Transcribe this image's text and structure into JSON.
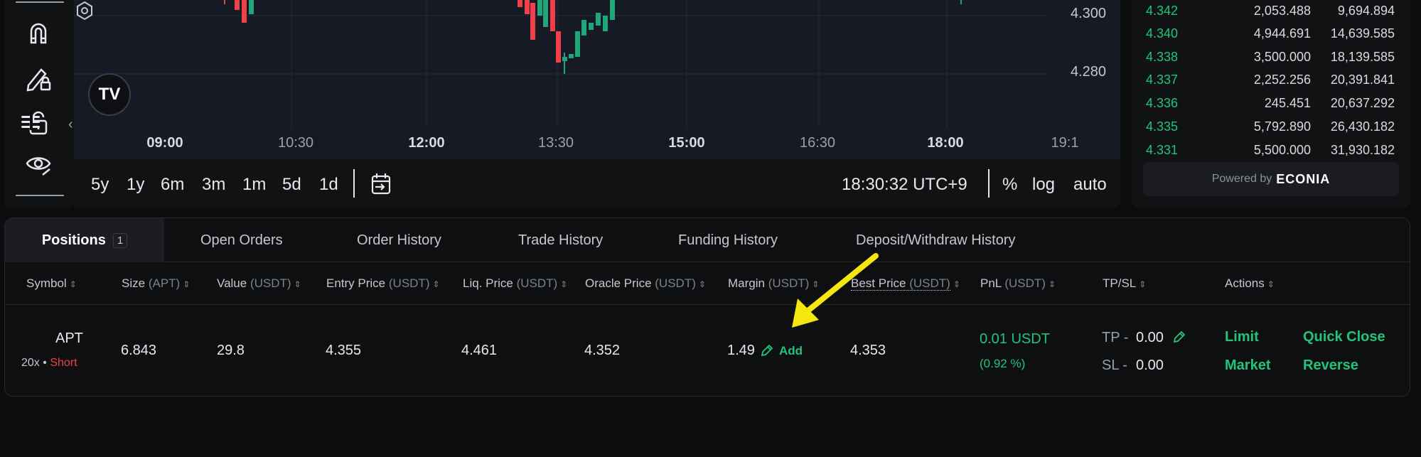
{
  "chart": {
    "price_labels": [
      "4.300",
      "4.280"
    ],
    "time_labels": [
      {
        "t": "09:00",
        "bold": true
      },
      {
        "t": "10:30",
        "bold": false
      },
      {
        "t": "12:00",
        "bold": true
      },
      {
        "t": "13:30",
        "bold": false
      },
      {
        "t": "15:00",
        "bold": true
      },
      {
        "t": "16:30",
        "bold": false
      },
      {
        "t": "18:00",
        "bold": true
      },
      {
        "t": "19:1",
        "bold": false
      }
    ],
    "logo_text": "TV",
    "timeframes": [
      "5y",
      "1y",
      "6m",
      "3m",
      "1m",
      "5d",
      "1d"
    ],
    "clock": "18:30:32 UTC+9",
    "percent": "%",
    "log": "log",
    "auto": "auto"
  },
  "orderbook": {
    "rows": [
      {
        "price": "4.342",
        "size": "2,053.488",
        "total": "9,694.894"
      },
      {
        "price": "4.340",
        "size": "4,944.691",
        "total": "14,639.585"
      },
      {
        "price": "4.338",
        "size": "3,500.000",
        "total": "18,139.585"
      },
      {
        "price": "4.337",
        "size": "2,252.256",
        "total": "20,391.841"
      },
      {
        "price": "4.336",
        "size": "245.451",
        "total": "20,637.292"
      },
      {
        "price": "4.335",
        "size": "5,792.890",
        "total": "26,430.182"
      },
      {
        "price": "4.331",
        "size": "5,500.000",
        "total": "31,930.182"
      }
    ],
    "powered_by": "Powered by",
    "brand": "ECONIA"
  },
  "tabs": {
    "positions": "Positions",
    "positions_count": "1",
    "open_orders": "Open Orders",
    "order_history": "Order History",
    "trade_history": "Trade History",
    "funding_history": "Funding History",
    "deposit_withdraw": "Deposit/Withdraw History"
  },
  "columns": {
    "symbol": "Symbol",
    "size": "Size",
    "size_unit": "(APT)",
    "value": "Value",
    "value_unit": "(USDT)",
    "entry": "Entry Price",
    "entry_unit": "(USDT)",
    "liq": "Liq. Price",
    "liq_unit": "(USDT)",
    "oracle": "Oracle Price",
    "oracle_unit": "(USDT)",
    "margin": "Margin",
    "margin_unit": "(USDT)",
    "best": "Best Price",
    "best_unit": "(USDT)",
    "pnl": "PnL",
    "pnl_unit": "(USDT)",
    "tpsl": "TP/SL",
    "actions": "Actions"
  },
  "position": {
    "symbol": "APT",
    "leverage": "20x",
    "separator": "•",
    "side": "Short",
    "size": "6.843",
    "value": "29.8",
    "entry_price": "4.355",
    "liq_price": "4.461",
    "oracle_price": "4.352",
    "margin": "1.49",
    "add_label": "Add",
    "best_price": "4.353",
    "pnl": "0.01 USDT",
    "pnl_pct": "(0.92 %)",
    "tp_label": "TP -",
    "tp_value": "0.00",
    "sl_label": "SL -",
    "sl_value": "0.00",
    "limit": "Limit",
    "market": "Market",
    "quick_close": "Quick Close",
    "reverse": "Reverse"
  },
  "colors": {
    "accent_green": "#21c47a",
    "short_red": "#f0414b",
    "annotation_arrow": "#f5e60f"
  }
}
